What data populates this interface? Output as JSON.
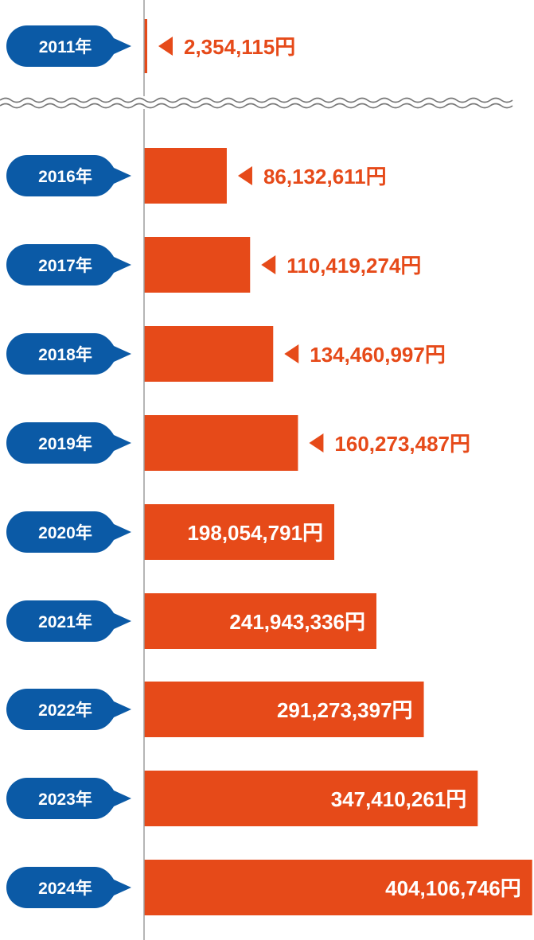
{
  "colors": {
    "bar": "#E64A19",
    "label_badge": "#0B5AA6",
    "axis": "#9E9E9E",
    "badge_text": "#FFFFFF",
    "value_text_outside": "#E64A19",
    "value_text_inside": "#FFFFFF"
  },
  "chart_data": {
    "type": "bar",
    "orientation": "horizontal",
    "categories": [
      "2011年",
      "2016年",
      "2017年",
      "2018年",
      "2019年",
      "2020年",
      "2021年",
      "2022年",
      "2023年",
      "2024年"
    ],
    "values": [
      2354115,
      86132611,
      110419274,
      134460997,
      160273487,
      198054791,
      241943336,
      291273397,
      347410261,
      404106746
    ],
    "value_labels": [
      "2,354,115円",
      "86,132,611円",
      "110,419,274円",
      "134,460,997円",
      "160,273,487円",
      "198,054,791円",
      "241,943,336円",
      "291,273,397円",
      "347,410,261円",
      "404,106,746円"
    ],
    "axis_break_after_index": 0,
    "xlim": [
      0,
      406000000
    ],
    "grid": false,
    "legend": "none"
  }
}
